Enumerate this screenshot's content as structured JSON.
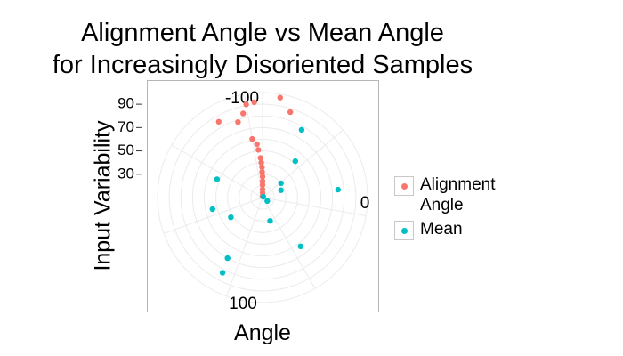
{
  "chart_data": {
    "type": "scatter",
    "coordinate_system": "polar",
    "title": [
      "Alignment Angle vs Mean Angle",
      "for Increasingly Disoriented Samples"
    ],
    "xlabel": "Angle",
    "ylabel": "Input Variability",
    "angle_tick_labels": [
      "-100",
      "0",
      "100"
    ],
    "radial_tick_labels": [
      "90",
      "70",
      "50",
      "30"
    ],
    "radial_ticks": [
      90,
      70,
      50,
      30
    ],
    "radial_range": [
      10,
      100
    ],
    "angle_range": [
      -180,
      180
    ],
    "grid": true,
    "legend_position": "right",
    "series": [
      {
        "name": "Alignment Angle",
        "color": "#F8766D",
        "points": [
          {
            "angle": -170,
            "r": 97
          },
          {
            "angle": -162,
            "r": 87
          },
          {
            "angle": 175,
            "r": 92
          },
          {
            "angle": 170,
            "r": 91
          },
          {
            "angle": 167,
            "r": 84
          },
          {
            "angle": 162,
            "r": 78
          },
          {
            "angle": 150,
            "r": 85
          },
          {
            "angle": 170,
            "r": 61
          },
          {
            "angle": 174,
            "r": 56
          },
          {
            "angle": 175,
            "r": 51
          },
          {
            "angle": 177,
            "r": 44
          },
          {
            "angle": 178,
            "r": 40
          },
          {
            "angle": 179,
            "r": 36
          },
          {
            "angle": 179,
            "r": 32
          },
          {
            "angle": 180,
            "r": 28
          },
          {
            "angle": 180,
            "r": 24
          },
          {
            "angle": 180,
            "r": 21
          },
          {
            "angle": 180,
            "r": 17
          },
          {
            "angle": 180,
            "r": 14
          },
          {
            "angle": 180,
            "r": 11
          }
        ]
      },
      {
        "name": "Mean",
        "color": "#00BFC4",
        "points": [
          {
            "angle": -96,
            "r": 75
          },
          {
            "angle": -38,
            "r": 63
          },
          {
            "angle": -150,
            "r": 77
          },
          {
            "angle": -138,
            "r": 52
          },
          {
            "angle": -112,
            "r": 27
          },
          {
            "angle": -128,
            "r": 30
          },
          {
            "angle": -54,
            "r": 15
          },
          {
            "angle": -18,
            "r": 31
          },
          {
            "angle": 40,
            "r": 9
          },
          {
            "angle": 58,
            "r": 42
          },
          {
            "angle": 77,
            "r": 54
          },
          {
            "angle": 112,
            "r": 52
          },
          {
            "angle": 30,
            "r": 70
          },
          {
            "angle": 28,
            "r": 83
          }
        ]
      }
    ]
  },
  "legend": {
    "items": [
      {
        "label": "Alignment\nAngle",
        "color": "#F8766D"
      },
      {
        "label": "Mean",
        "color": "#00BFC4"
      }
    ]
  }
}
